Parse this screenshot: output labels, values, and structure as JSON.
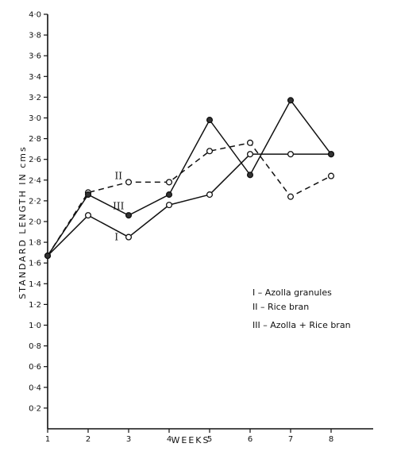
{
  "chart_data": {
    "type": "line",
    "xlabel": "WEEKS",
    "ylabel": "STANDARD LENGTH IN cms",
    "x": [
      1,
      2,
      3,
      4,
      5,
      6,
      7,
      8
    ],
    "xlim": [
      1,
      9
    ],
    "ylim": [
      0,
      4.0
    ],
    "x_ticks": [
      "1",
      "2",
      "3",
      "4",
      "5",
      "6",
      "7",
      "8"
    ],
    "y_ticks": [
      "0·2",
      "0·4",
      "0·6",
      "0·8",
      "1·0",
      "1·2",
      "1·4",
      "1·6",
      "1·8",
      "2·0",
      "2·2",
      "2·4",
      "2·6",
      "2·8",
      "3·0",
      "3·2",
      "3·4",
      "3·6",
      "3·8",
      "4·0"
    ],
    "y_tick_values": [
      0.2,
      0.4,
      0.6,
      0.8,
      1.0,
      1.2,
      1.4,
      1.6,
      1.8,
      2.0,
      2.2,
      2.4,
      2.6,
      2.8,
      3.0,
      3.2,
      3.4,
      3.6,
      3.8,
      4.0
    ],
    "grid": false,
    "legend_position": "bottom-right",
    "series": [
      {
        "name": "I",
        "legend": "I – Azolla granules",
        "values": [
          1.67,
          2.06,
          1.85,
          2.16,
          2.26,
          2.65,
          2.65,
          2.65
        ],
        "style": "solid",
        "marker": "open"
      },
      {
        "name": "II",
        "legend": "II – Rice bran",
        "values": [
          1.67,
          2.28,
          2.38,
          2.38,
          2.68,
          2.76,
          2.24,
          2.44
        ],
        "style": "dashed",
        "marker": "open"
      },
      {
        "name": "III",
        "legend": "III – Azolla + Rice bran",
        "values": [
          1.67,
          2.26,
          2.06,
          2.26,
          2.98,
          2.45,
          3.17,
          2.65
        ],
        "style": "solid",
        "marker": "filled"
      }
    ],
    "annotations": [
      {
        "text": "II",
        "x": 2.75,
        "y": 2.44
      },
      {
        "text": "III",
        "x": 2.75,
        "y": 2.15
      },
      {
        "text": "I",
        "x": 2.7,
        "y": 1.85
      }
    ]
  }
}
